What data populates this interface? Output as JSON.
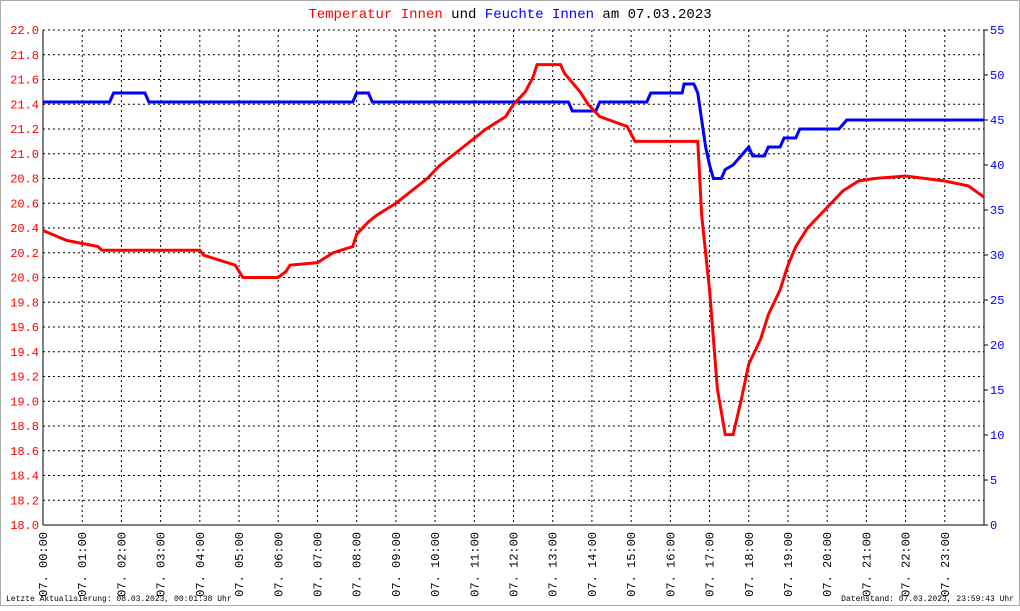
{
  "chart_data": {
    "type": "line",
    "title_parts": [
      "und",
      "am 07.03.2023"
    ],
    "footer_left": "Letzte Aktualisierung: 08.03.2023, 00:01:38 Uhr",
    "footer_right": "Datenstand: 07.03.2023, 23:59:43 Uhr",
    "grid": true,
    "xlim": [
      0,
      24
    ],
    "xticks": [
      {
        "value": 0,
        "label": "07. 00:00"
      },
      {
        "value": 1,
        "label": "07. 01:00"
      },
      {
        "value": 2,
        "label": "07. 02:00"
      },
      {
        "value": 3,
        "label": "07. 03:00"
      },
      {
        "value": 4,
        "label": "07. 04:00"
      },
      {
        "value": 5,
        "label": "07. 05:00"
      },
      {
        "value": 6,
        "label": "07. 06:00"
      },
      {
        "value": 7,
        "label": "07. 07:00"
      },
      {
        "value": 8,
        "label": "07. 08:00"
      },
      {
        "value": 9,
        "label": "07. 09:00"
      },
      {
        "value": 10,
        "label": "07. 10:00"
      },
      {
        "value": 11,
        "label": "07. 11:00"
      },
      {
        "value": 12,
        "label": "07. 12:00"
      },
      {
        "value": 13,
        "label": "07. 13:00"
      },
      {
        "value": 14,
        "label": "07. 14:00"
      },
      {
        "value": 15,
        "label": "07. 15:00"
      },
      {
        "value": 16,
        "label": "07. 16:00"
      },
      {
        "value": 17,
        "label": "07. 17:00"
      },
      {
        "value": 18,
        "label": "07. 18:00"
      },
      {
        "value": 19,
        "label": "07. 19:00"
      },
      {
        "value": 20,
        "label": "07. 20:00"
      },
      {
        "value": 21,
        "label": "07. 21:00"
      },
      {
        "value": 22,
        "label": "07. 22:00"
      },
      {
        "value": 23,
        "label": "07. 23:00"
      }
    ],
    "ylim": [
      18,
      22
    ],
    "yticks": [
      {
        "value": 18,
        "label": "18.0"
      },
      18.2,
      18.4,
      18.6,
      18.8,
      {
        "value": 19,
        "label": "19.0"
      },
      19.2,
      19.4,
      19.6,
      19.8,
      {
        "value": 20,
        "label": "20.0"
      },
      20.2,
      20.4,
      20.6,
      20.8,
      {
        "value": 21,
        "label": "21.0"
      },
      21.2,
      21.4,
      21.6,
      21.8,
      {
        "value": 22,
        "label": "22.0"
      }
    ],
    "y2lim": [
      0,
      55
    ],
    "y2ticks": [
      0,
      5,
      10,
      15,
      20,
      25,
      30,
      35,
      40,
      45,
      50,
      55
    ],
    "series": [
      {
        "name": "Temperatur Innen",
        "color": "#ff0000",
        "x": [
          0,
          0.6,
          1.4,
          1.5,
          4.0,
          4.1,
          4.9,
          5.0,
          5.1,
          6.0,
          6.2,
          6.3,
          7.0,
          7.4,
          7.9,
          8.0,
          8.3,
          8.5,
          9.0,
          9.4,
          9.8,
          10.1,
          10.5,
          10.9,
          11.3,
          11.8,
          12.0,
          12.3,
          12.5,
          12.6,
          13.2,
          13.3,
          13.7,
          13.9,
          14.2,
          14.9,
          15.1,
          16.7,
          16.8,
          17.0,
          17.2,
          17.4,
          17.6,
          17.8,
          18.0,
          18.3,
          18.5,
          18.8,
          19.0,
          19.2,
          19.5,
          19.8,
          20.1,
          20.4,
          20.8,
          21.2,
          22.0,
          23.0,
          23.6,
          24.0
        ],
        "values": [
          20.38,
          20.3,
          20.25,
          20.22,
          20.22,
          20.18,
          20.1,
          20.05,
          20.0,
          20.0,
          20.05,
          20.1,
          20.12,
          20.2,
          20.25,
          20.35,
          20.45,
          20.5,
          20.6,
          20.7,
          20.8,
          20.9,
          21.0,
          21.1,
          21.2,
          21.3,
          21.4,
          21.5,
          21.62,
          21.72,
          21.72,
          21.65,
          21.5,
          21.4,
          21.3,
          21.22,
          21.1,
          21.1,
          20.5,
          19.9,
          19.1,
          18.73,
          18.73,
          19.0,
          19.3,
          19.5,
          19.7,
          19.9,
          20.1,
          20.25,
          20.4,
          20.5,
          20.6,
          20.7,
          20.78,
          20.8,
          20.82,
          20.78,
          20.74,
          20.65
        ]
      },
      {
        "name": "Feuchte Innen",
        "color": "#0000ff",
        "axis": "y2",
        "x": [
          0,
          1.7,
          1.8,
          2.6,
          2.7,
          7.9,
          8.0,
          8.3,
          8.4,
          13.4,
          13.5,
          14.1,
          14.2,
          15.4,
          15.5,
          16.3,
          16.35,
          16.6,
          16.7,
          16.8,
          16.9,
          17.0,
          17.1,
          17.3,
          17.4,
          17.6,
          17.8,
          18.0,
          18.1,
          18.4,
          18.5,
          18.8,
          18.9,
          19.2,
          19.3,
          20.3,
          20.5,
          24.0
        ],
        "values": [
          47,
          47,
          48,
          48,
          47,
          47,
          48,
          48,
          47,
          47,
          46,
          46,
          47,
          47,
          48,
          48,
          49,
          49,
          48,
          45,
          42,
          40,
          38.5,
          38.5,
          39.5,
          40,
          41,
          42,
          41,
          41,
          42,
          42,
          43,
          43,
          44,
          44,
          45,
          45
        ]
      }
    ]
  }
}
